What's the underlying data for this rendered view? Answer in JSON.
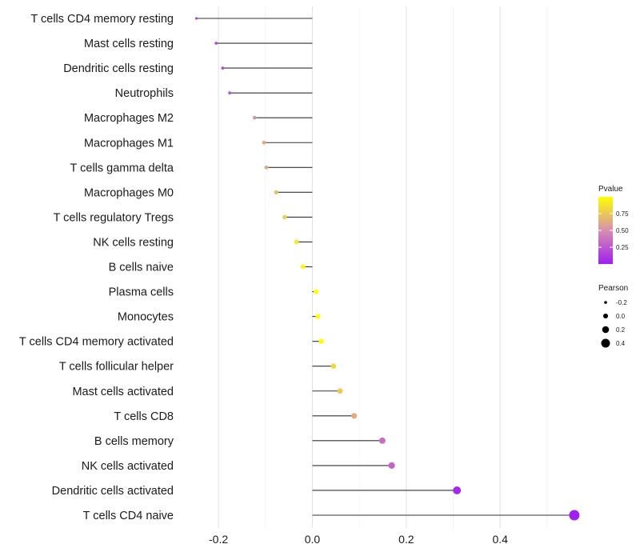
{
  "chart_data": {
    "type": "lollipop",
    "xlabel": "",
    "ylabel": "",
    "xlim": [
      -0.27,
      0.565
    ],
    "xticks": [
      -0.2,
      0.0,
      0.2,
      0.4
    ],
    "xtick_labels": [
      "-0.2",
      "0.0",
      "0.2",
      "0.4"
    ],
    "grid": true,
    "legend_position": "right",
    "categories": [
      "T cells CD4 memory resting",
      "Mast cells resting",
      "Dendritic cells resting",
      "Neutrophils",
      "Macrophages M2",
      "Macrophages M1",
      "T cells gamma delta",
      "Macrophages M0",
      "T cells regulatory  Tregs",
      "NK cells resting",
      "B cells naive",
      "Plasma cells",
      "Monocytes",
      "T cells CD4 memory activated",
      "T cells follicular helper",
      "Mast cells activated",
      "T cells CD8",
      "B cells memory",
      "NK cells activated",
      "Dendritic cells activated",
      "T cells CD4 naive"
    ],
    "pearson": [
      -0.247,
      -0.205,
      -0.191,
      -0.176,
      -0.123,
      -0.103,
      -0.098,
      -0.077,
      -0.059,
      -0.034,
      -0.02,
      0.008,
      0.012,
      0.019,
      0.045,
      0.059,
      0.089,
      0.149,
      0.169,
      0.308,
      0.558
    ],
    "pvalue": [
      0.05,
      0.15,
      0.18,
      0.22,
      0.5,
      0.62,
      0.62,
      0.72,
      0.78,
      0.9,
      0.97,
      1.0,
      1.0,
      0.99,
      0.82,
      0.75,
      0.62,
      0.35,
      0.3,
      0.04,
      0.0008
    ],
    "colorbar": {
      "title": "Pvalue",
      "ticks": [
        0.25,
        0.5,
        0.75
      ],
      "tick_labels": [
        "0.25",
        "0.50",
        "0.75"
      ],
      "low_color": "#a020f0",
      "mid_color": "#d68fb0",
      "high_color": "#ffff00"
    },
    "size_legend": {
      "title": "Pearson",
      "values": [
        -0.2,
        0.0,
        0.2,
        0.4
      ],
      "labels": [
        "-0.2",
        "0.0",
        "0.2",
        "0.4"
      ],
      "point_color": "#000000"
    }
  }
}
